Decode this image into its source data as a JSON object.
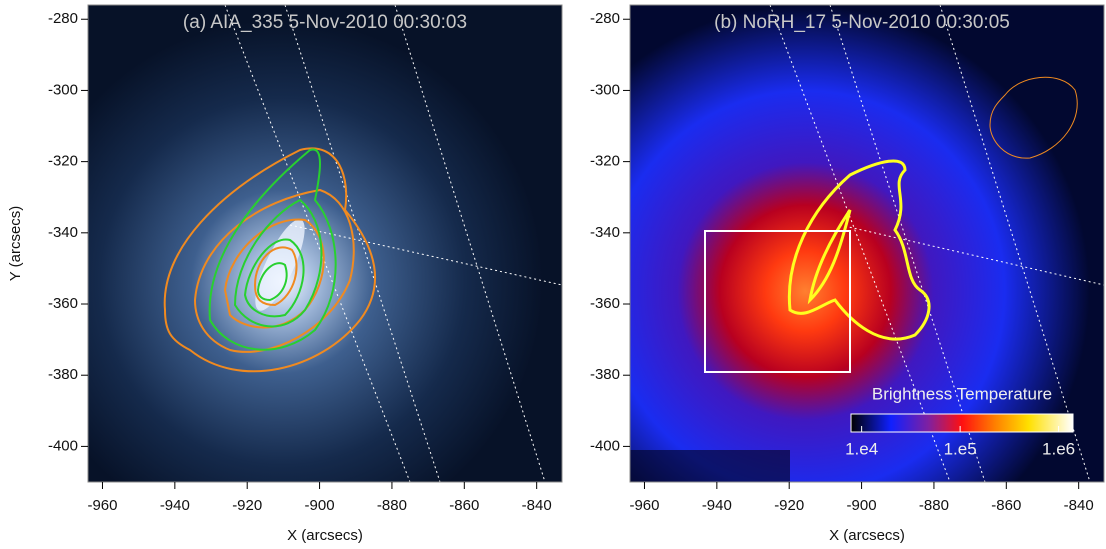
{
  "chart_data": [
    {
      "type": "image",
      "title": "(a) AIA_335  5-Nov-2010 00:30:03",
      "xlabel": "X (arcsecs)",
      "ylabel": "Y (arcsecs)",
      "xlim": [
        -964,
        -833
      ],
      "ylim": [
        -410,
        -276
      ],
      "xticks": [
        -960,
        -940,
        -920,
        -900,
        -880,
        -860,
        -840
      ],
      "yticks": [
        -280,
        -300,
        -320,
        -340,
        -360,
        -380,
        -400
      ]
    },
    {
      "type": "image",
      "title": "(b) NoRH_17 5-Nov-2010 00:30:05",
      "xlabel": "X (arcsecs)",
      "xlim": [
        -964,
        -833
      ],
      "ylim": [
        -410,
        -276
      ],
      "xticks": [
        -960,
        -940,
        -920,
        -900,
        -880,
        -860,
        -840
      ],
      "yticks": [
        -280,
        -300,
        -320,
        -340,
        -360,
        -380,
        -400
      ],
      "colorbar": {
        "label": "Brightness Temperature",
        "log": true,
        "lim": [
          7800,
          1400000
        ],
        "ticks": [
          {
            "value": 10000,
            "label": "1.e4"
          },
          {
            "value": 100000,
            "label": "1.e5"
          },
          {
            "value": 1000000,
            "label": "1.e6"
          }
        ]
      }
    }
  ]
}
